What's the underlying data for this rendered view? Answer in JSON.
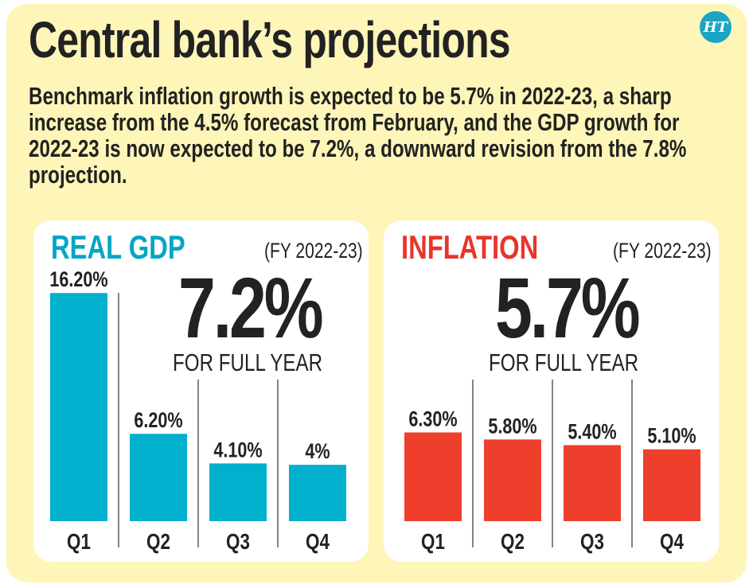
{
  "title": "Central bank’s projections",
  "description": "Benchmark inflation growth is expected to be 5.7% in 2022-23, a sharp increase from the 4.5% forecast from February, and the GDP growth for 2022-23 is now expected to be 7.2%, a downward revision from the 7.8% projection.",
  "logo": "HT",
  "chart_data": [
    {
      "type": "bar",
      "title": "REAL GDP",
      "subtitle": "(FY 2022-23)",
      "headline": "7.2%",
      "headline_label": "FOR FULL YEAR",
      "categories": [
        "Q1",
        "Q2",
        "Q3",
        "Q4"
      ],
      "values": [
        16.2,
        6.2,
        4.1,
        4.0
      ],
      "data_labels": [
        "16.20%",
        "6.20%",
        "4.10%",
        "4%"
      ],
      "color": "#00b0cc",
      "title_color": "#00a6c4"
    },
    {
      "type": "bar",
      "title": "INFLATION",
      "subtitle": "(FY 2022-23)",
      "headline": "5.7%",
      "headline_label": "FOR FULL YEAR",
      "categories": [
        "Q1",
        "Q2",
        "Q3",
        "Q4"
      ],
      "values": [
        6.3,
        5.8,
        5.4,
        5.1
      ],
      "data_labels": [
        "6.30%",
        "5.80%",
        "5.40%",
        "5.10%"
      ],
      "color": "#ee3e2c",
      "title_color": "#e8352a"
    }
  ]
}
